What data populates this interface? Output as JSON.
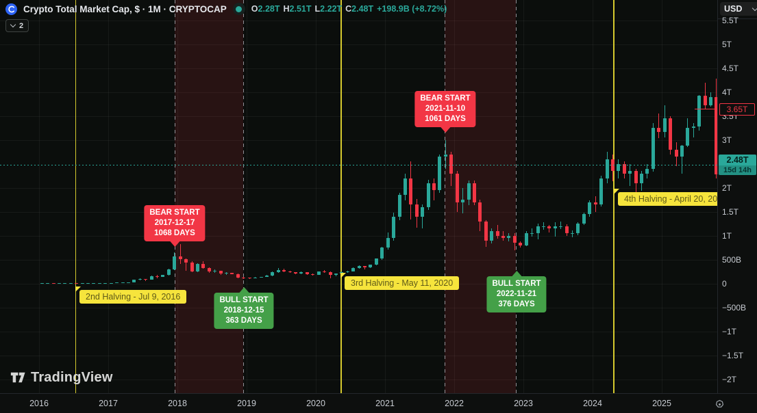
{
  "header": {
    "title": "Crypto Total Market Cap, $ · 1M · CRYPTOCAP",
    "ohlc": [
      {
        "k": "O",
        "v": "2.28T"
      },
      {
        "k": "H",
        "v": "2.51T"
      },
      {
        "k": "L",
        "v": "2.22T"
      },
      {
        "k": "C",
        "v": "2.48T"
      }
    ],
    "change": "+198.9B (+8.72%)",
    "collapse_count": "2"
  },
  "price_axis": {
    "currency": "USD",
    "labels": [
      {
        "text": "5.5T",
        "value": 5500
      },
      {
        "text": "5T",
        "value": 5000
      },
      {
        "text": "4.5T",
        "value": 4500
      },
      {
        "text": "4T",
        "value": 4000
      },
      {
        "text": "3.5T",
        "value": 3500
      },
      {
        "text": "3T",
        "value": 3000
      },
      {
        "text": "2T",
        "value": 2000
      },
      {
        "text": "1.5T",
        "value": 1500
      },
      {
        "text": "1T",
        "value": 1000
      },
      {
        "text": "500B",
        "value": 500
      },
      {
        "text": "0",
        "value": 0
      },
      {
        "text": "−500B",
        "value": -500
      },
      {
        "text": "−1T",
        "value": -1000
      },
      {
        "text": "−1.5T",
        "value": -1500
      },
      {
        "text": "−2T",
        "value": -2000
      }
    ],
    "last_price": {
      "text": "2.48T",
      "countdown": "15d 14h"
    },
    "alert": {
      "text": "3.65T",
      "value": 3650
    }
  },
  "time_axis": {
    "years": [
      "2016",
      "2017",
      "2018",
      "2019",
      "2020",
      "2021",
      "2022",
      "2023",
      "2024",
      "2025"
    ]
  },
  "annotations": {
    "halving2": {
      "text": "2nd Halving - Jul 9, 2016",
      "t": 2016.52,
      "line": "halving"
    },
    "halving3": {
      "text": "3rd Halving - May 11, 2020",
      "t": 2020.36,
      "line": "halving"
    },
    "halving4": {
      "text": "4th Halving - April 20, 20",
      "t": 2024.3,
      "line": "halving"
    },
    "bear1": {
      "lines": [
        "BEAR START",
        "2017-12-17",
        "1068 DAYS"
      ],
      "t": 2017.96,
      "line": "dashed"
    },
    "bull1": {
      "lines": [
        "BULL START",
        "2018-12-15",
        "363 DAYS"
      ],
      "t": 2018.95,
      "line": "dashed"
    },
    "bear2": {
      "lines": [
        "BEAR START",
        "2021-11-10",
        "1061 DAYS"
      ],
      "t": 2021.86,
      "line": "dashed"
    },
    "bull2": {
      "lines": [
        "BULL START",
        "2022-11-21",
        "376 DAYS"
      ],
      "t": 2022.89,
      "line": "dashed"
    }
  },
  "zones": [
    {
      "from": 2017.96,
      "to": 2018.95
    },
    {
      "from": 2021.86,
      "to": 2022.89
    }
  ],
  "watermark": "TradingView",
  "colors": {
    "up": "#2aa89a",
    "down": "#f23645",
    "halving_line": "#d6ca2e",
    "halving_label_bg": "#f6e43c",
    "bear_label_bg": "#f23645",
    "bull_label_bg": "#44a048",
    "last_price_bg": "#2aa89a",
    "alert_color": "#f23645",
    "axis_text": "#c7cbd1"
  },
  "chart_data": {
    "type": "candlestick",
    "title": "Crypto Total Market Cap, $ · 1M · CRYPTOCAP",
    "timeframe": "1M",
    "unit": "billions USD",
    "y_axis": {
      "min": -2000,
      "max": 5500,
      "tick_step": 500,
      "grid": true
    },
    "x_axis": {
      "start_year": 2016,
      "end_year": 2025,
      "grid": true
    },
    "current_price": 2480,
    "alert_price": 3650,
    "candles": [
      [
        2016,
        1,
        7,
        8.2,
        6.8,
        7.6
      ],
      [
        2016,
        2,
        7.6,
        8.4,
        7.4,
        8.2
      ],
      [
        2016,
        3,
        8.2,
        8.8,
        7.8,
        8.1
      ],
      [
        2016,
        4,
        8.1,
        9.1,
        7.9,
        8.9
      ],
      [
        2016,
        5,
        8.9,
        9.6,
        8.6,
        9.2
      ],
      [
        2016,
        6,
        9.2,
        12.6,
        9,
        12.1
      ],
      [
        2016,
        7,
        12.1,
        12.9,
        10.7,
        11.2
      ],
      [
        2016,
        8,
        11.2,
        12,
        10.8,
        11.4
      ],
      [
        2016,
        9,
        11.4,
        12.1,
        11.1,
        11.9
      ],
      [
        2016,
        10,
        11.9,
        12.5,
        11.5,
        12.3
      ],
      [
        2016,
        11,
        12.3,
        13.1,
        11.8,
        12.8
      ],
      [
        2016,
        12,
        12.8,
        17.8,
        12.6,
        17.6
      ],
      [
        2017,
        1,
        17.6,
        19.5,
        14.8,
        18.2
      ],
      [
        2017,
        2,
        18.2,
        24.5,
        17.4,
        23.6
      ],
      [
        2017,
        3,
        23.6,
        26.5,
        21.8,
        25.2
      ],
      [
        2017,
        4,
        25.2,
        35.5,
        24.1,
        34.2
      ],
      [
        2017,
        5,
        34.2,
        91,
        33.5,
        80
      ],
      [
        2017,
        6,
        80,
        117,
        74,
        100
      ],
      [
        2017,
        7,
        100,
        106,
        63,
        90
      ],
      [
        2017,
        8,
        90,
        166,
        87,
        159
      ],
      [
        2017,
        9,
        159,
        180,
        108,
        146
      ],
      [
        2017,
        10,
        146,
        186,
        139,
        181
      ],
      [
        2017,
        11,
        181,
        312,
        174,
        299
      ],
      [
        2017,
        12,
        299,
        654,
        287,
        572
      ],
      [
        2018,
        1,
        572,
        835,
        418,
        518
      ],
      [
        2018,
        2,
        518,
        532,
        276,
        438
      ],
      [
        2018,
        3,
        438,
        468,
        248,
        262
      ],
      [
        2018,
        4,
        262,
        434,
        244,
        418
      ],
      [
        2018,
        5,
        418,
        471,
        318,
        328
      ],
      [
        2018,
        6,
        328,
        346,
        228,
        252
      ],
      [
        2018,
        7,
        252,
        302,
        234,
        270
      ],
      [
        2018,
        8,
        270,
        276,
        189,
        221
      ],
      [
        2018,
        9,
        221,
        241,
        184,
        223
      ],
      [
        2018,
        10,
        223,
        233,
        197,
        203
      ],
      [
        2018,
        11,
        203,
        216,
        118,
        130
      ],
      [
        2018,
        12,
        130,
        141,
        98,
        126
      ],
      [
        2019,
        1,
        126,
        131,
        106,
        115
      ],
      [
        2019,
        2,
        115,
        136,
        109,
        131
      ],
      [
        2019,
        3,
        131,
        148,
        125,
        144
      ],
      [
        2019,
        4,
        144,
        186,
        139,
        171
      ],
      [
        2019,
        5,
        171,
        256,
        162,
        246
      ],
      [
        2019,
        6,
        246,
        332,
        234,
        291
      ],
      [
        2019,
        7,
        291,
        311,
        238,
        264
      ],
      [
        2019,
        8,
        264,
        276,
        224,
        236
      ],
      [
        2019,
        9,
        236,
        246,
        194,
        219
      ],
      [
        2019,
        10,
        219,
        251,
        199,
        241
      ],
      [
        2019,
        11,
        241,
        246,
        188,
        201
      ],
      [
        2019,
        12,
        201,
        211,
        174,
        191
      ],
      [
        2020,
        1,
        191,
        256,
        184,
        251
      ],
      [
        2020,
        2,
        251,
        287,
        228,
        246
      ],
      [
        2020,
        3,
        246,
        251,
        118,
        181
      ],
      [
        2020,
        4,
        181,
        216,
        164,
        211
      ],
      [
        2020,
        5,
        211,
        261,
        199,
        246
      ],
      [
        2020,
        6,
        246,
        271,
        234,
        261
      ],
      [
        2020,
        7,
        261,
        336,
        254,
        331
      ],
      [
        2020,
        8,
        331,
        391,
        319,
        366
      ],
      [
        2020,
        9,
        366,
        371,
        299,
        346
      ],
      [
        2020,
        10,
        346,
        401,
        329,
        396
      ],
      [
        2020,
        11,
        396,
        531,
        379,
        526
      ],
      [
        2020,
        12,
        526,
        772,
        499,
        761
      ],
      [
        2021,
        1,
        761,
        1072,
        718,
        952
      ],
      [
        2021,
        2,
        952,
        1482,
        898,
        1402
      ],
      [
        2021,
        3,
        1402,
        1902,
        1328,
        1852
      ],
      [
        2021,
        4,
        1852,
        2302,
        1748,
        2202
      ],
      [
        2021,
        5,
        2202,
        2552,
        1348,
        1652
      ],
      [
        2021,
        6,
        1652,
        1772,
        1178,
        1402
      ],
      [
        2021,
        7,
        1402,
        1652,
        1158,
        1602
      ],
      [
        2021,
        8,
        1602,
        2172,
        1548,
        2102
      ],
      [
        2021,
        9,
        2102,
        2202,
        1748,
        1952
      ],
      [
        2021,
        10,
        1952,
        2702,
        1898,
        2652
      ],
      [
        2021,
        11,
        2652,
        3002,
        2398,
        2702
      ],
      [
        2021,
        12,
        2702,
        2752,
        2048,
        2302
      ],
      [
        2022,
        1,
        2302,
        2352,
        1498,
        1702
      ],
      [
        2022,
        2,
        1702,
        2002,
        1478,
        1752
      ],
      [
        2022,
        3,
        1752,
        2152,
        1648,
        2102
      ],
      [
        2022,
        4,
        2102,
        2152,
        1648,
        1702
      ],
      [
        2022,
        5,
        1702,
        1752,
        1098,
        1302
      ],
      [
        2022,
        6,
        1302,
        1322,
        778,
        902
      ],
      [
        2022,
        7,
        902,
        1152,
        848,
        1102
      ],
      [
        2022,
        8,
        1102,
        1232,
        948,
        1002
      ],
      [
        2022,
        9,
        1002,
        1102,
        898,
        952
      ],
      [
        2022,
        10,
        952,
        1052,
        888,
        1002
      ],
      [
        2022,
        11,
        1002,
        1062,
        698,
        852
      ],
      [
        2022,
        12,
        852,
        882,
        758,
        802
      ],
      [
        2023,
        1,
        802,
        1102,
        788,
        1052
      ],
      [
        2023,
        2,
        1052,
        1152,
        988,
        1052
      ],
      [
        2023,
        3,
        1052,
        1252,
        928,
        1202
      ],
      [
        2023,
        4,
        1202,
        1282,
        1128,
        1202
      ],
      [
        2023,
        5,
        1202,
        1232,
        1068,
        1152
      ],
      [
        2023,
        6,
        1152,
        1282,
        988,
        1202
      ],
      [
        2023,
        7,
        1202,
        1302,
        1138,
        1202
      ],
      [
        2023,
        8,
        1202,
        1242,
        998,
        1052
      ],
      [
        2023,
        9,
        1052,
        1112,
        978,
        1052
      ],
      [
        2023,
        10,
        1052,
        1282,
        1018,
        1252
      ],
      [
        2023,
        11,
        1252,
        1482,
        1228,
        1452
      ],
      [
        2023,
        12,
        1452,
        1742,
        1398,
        1702
      ],
      [
        2024,
        1,
        1702,
        1822,
        1498,
        1652
      ],
      [
        2024,
        2,
        1652,
        2252,
        1618,
        2202
      ],
      [
        2024,
        3,
        2202,
        2752,
        2098,
        2602
      ],
      [
        2024,
        4,
        2602,
        2702,
        2148,
        2352
      ],
      [
        2024,
        5,
        2352,
        2602,
        2198,
        2502
      ],
      [
        2024,
        6,
        2502,
        2552,
        2198,
        2302
      ],
      [
        2024,
        7,
        2302,
        2502,
        2048,
        2352
      ],
      [
        2024,
        8,
        2352,
        2402,
        1848,
        2102
      ],
      [
        2024,
        9,
        2102,
        2352,
        1948,
        2302
      ],
      [
        2024,
        10,
        2302,
        2502,
        2198,
        2402
      ],
      [
        2024,
        11,
        2402,
        3352,
        2348,
        3252
      ],
      [
        2024,
        12,
        3252,
        3552,
        3048,
        3172
      ],
      [
        2025,
        1,
        3172,
        3732,
        3052,
        3462
      ],
      [
        2025,
        2,
        3462,
        3502,
        2702,
        2802
      ],
      [
        2025,
        3,
        2802,
        2952,
        2452,
        2652
      ],
      [
        2025,
        4,
        2652,
        2902,
        2302,
        2892
      ],
      [
        2025,
        5,
        2892,
        3452,
        2852,
        3262
      ],
      [
        2025,
        6,
        3262,
        3352,
        3052,
        3282
      ],
      [
        2025,
        7,
        3282,
        3942,
        3202,
        3932
      ],
      [
        2025,
        8,
        3932,
        4202,
        3642,
        3722
      ],
      [
        2025,
        9,
        3722,
        4002,
        3702,
        3902
      ],
      [
        2025,
        10,
        3902,
        4282,
        2202,
        2282
      ],
      [
        2025,
        11,
        2282,
        2512,
        2222,
        2482
      ]
    ]
  }
}
